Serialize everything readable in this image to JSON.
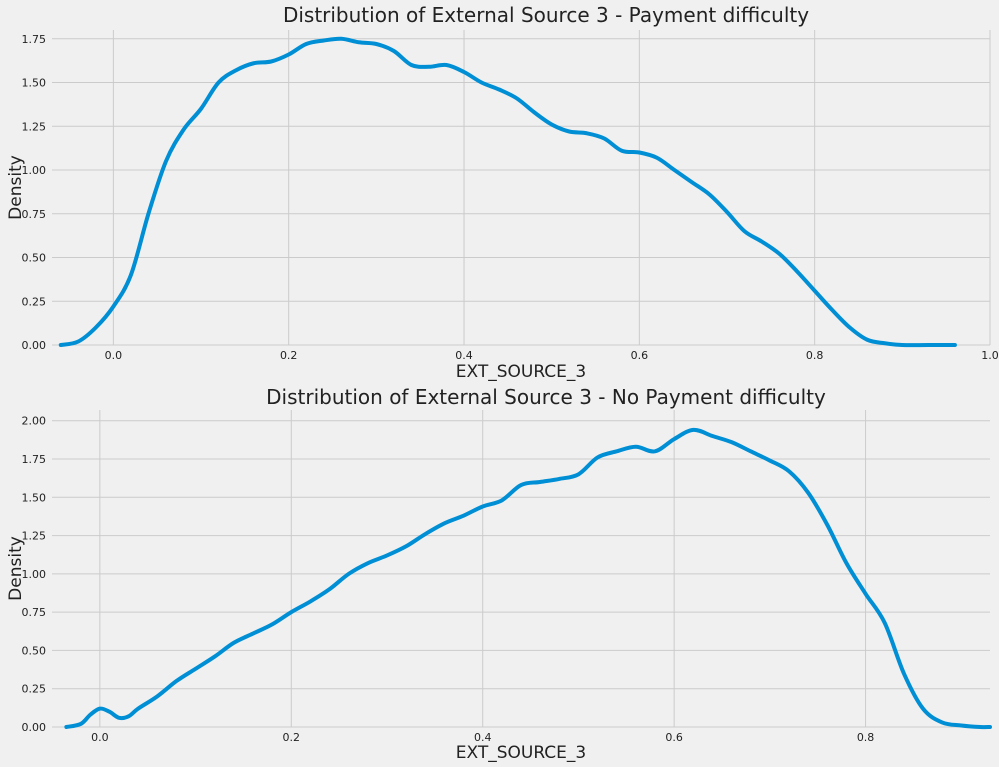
{
  "chart_data": [
    {
      "type": "line",
      "title": "Distribution of External Source 3 - Payment difficulty",
      "xlabel": "EXT_SOURCE_3",
      "ylabel": "Density",
      "xlim": [
        -0.07,
        1.0
      ],
      "ylim": [
        0,
        1.8
      ],
      "xticks": [
        0.0,
        0.2,
        0.4,
        0.6,
        0.8,
        1.0
      ],
      "xtick_labels": [
        "0.0",
        "0.2",
        "0.4",
        "0.6",
        "0.8",
        "1.0"
      ],
      "yticks": [
        0.0,
        0.25,
        0.5,
        0.75,
        1.0,
        1.25,
        1.5,
        1.75
      ],
      "ytick_labels": [
        "0.00",
        "0.25",
        "0.50",
        "0.75",
        "1.00",
        "1.25",
        "1.50",
        "1.75"
      ],
      "grid": true,
      "color": "#008fd5",
      "series": [
        {
          "x": [
            -0.06,
            -0.04,
            -0.02,
            0.0,
            0.02,
            0.04,
            0.06,
            0.08,
            0.1,
            0.12,
            0.14,
            0.16,
            0.18,
            0.2,
            0.22,
            0.24,
            0.26,
            0.28,
            0.3,
            0.32,
            0.34,
            0.36,
            0.38,
            0.4,
            0.42,
            0.44,
            0.46,
            0.48,
            0.5,
            0.52,
            0.54,
            0.56,
            0.58,
            0.6,
            0.62,
            0.64,
            0.66,
            0.68,
            0.7,
            0.72,
            0.74,
            0.76,
            0.78,
            0.8,
            0.82,
            0.84,
            0.86,
            0.88,
            0.9,
            0.93,
            0.96
          ],
          "y": [
            0.0,
            0.02,
            0.1,
            0.22,
            0.4,
            0.75,
            1.05,
            1.23,
            1.35,
            1.5,
            1.57,
            1.61,
            1.62,
            1.66,
            1.72,
            1.74,
            1.75,
            1.73,
            1.72,
            1.68,
            1.6,
            1.59,
            1.6,
            1.56,
            1.5,
            1.46,
            1.41,
            1.33,
            1.26,
            1.22,
            1.21,
            1.18,
            1.11,
            1.1,
            1.07,
            1.0,
            0.93,
            0.86,
            0.76,
            0.65,
            0.59,
            0.52,
            0.42,
            0.31,
            0.2,
            0.1,
            0.03,
            0.01,
            0.0,
            0.0,
            0.0
          ]
        }
      ]
    },
    {
      "type": "line",
      "title": "Distribution of External Source 3 - No Payment difficulty",
      "xlabel": "EXT_SOURCE_3",
      "ylabel": "Density",
      "xlim": [
        -0.05,
        0.93
      ],
      "ylim": [
        0,
        2.07
      ],
      "xticks": [
        0.0,
        0.2,
        0.4,
        0.6,
        0.8
      ],
      "xtick_labels": [
        "0.0",
        "0.2",
        "0.4",
        "0.6",
        "0.8"
      ],
      "yticks": [
        0.0,
        0.25,
        0.5,
        0.75,
        1.0,
        1.25,
        1.5,
        1.75,
        2.0
      ],
      "ytick_labels": [
        "0.00",
        "0.25",
        "0.50",
        "0.75",
        "1.00",
        "1.25",
        "1.50",
        "1.75",
        "2.00"
      ],
      "grid": true,
      "color": "#008fd5",
      "series": [
        {
          "x": [
            -0.035,
            -0.02,
            -0.01,
            0.0,
            0.01,
            0.02,
            0.03,
            0.04,
            0.06,
            0.08,
            0.1,
            0.12,
            0.14,
            0.16,
            0.18,
            0.2,
            0.22,
            0.24,
            0.26,
            0.28,
            0.3,
            0.32,
            0.34,
            0.36,
            0.38,
            0.4,
            0.42,
            0.44,
            0.46,
            0.48,
            0.5,
            0.52,
            0.54,
            0.56,
            0.58,
            0.6,
            0.62,
            0.64,
            0.66,
            0.68,
            0.7,
            0.72,
            0.74,
            0.76,
            0.78,
            0.8,
            0.82,
            0.84,
            0.86,
            0.88,
            0.9,
            0.92,
            0.93
          ],
          "y": [
            0.0,
            0.02,
            0.08,
            0.12,
            0.1,
            0.06,
            0.07,
            0.12,
            0.2,
            0.3,
            0.38,
            0.46,
            0.55,
            0.61,
            0.67,
            0.75,
            0.82,
            0.9,
            1.0,
            1.07,
            1.12,
            1.18,
            1.26,
            1.33,
            1.38,
            1.44,
            1.48,
            1.58,
            1.6,
            1.62,
            1.65,
            1.76,
            1.8,
            1.83,
            1.8,
            1.88,
            1.94,
            1.9,
            1.86,
            1.8,
            1.74,
            1.67,
            1.53,
            1.32,
            1.07,
            0.87,
            0.68,
            0.35,
            0.12,
            0.03,
            0.01,
            0.0,
            0.0
          ]
        }
      ]
    }
  ]
}
